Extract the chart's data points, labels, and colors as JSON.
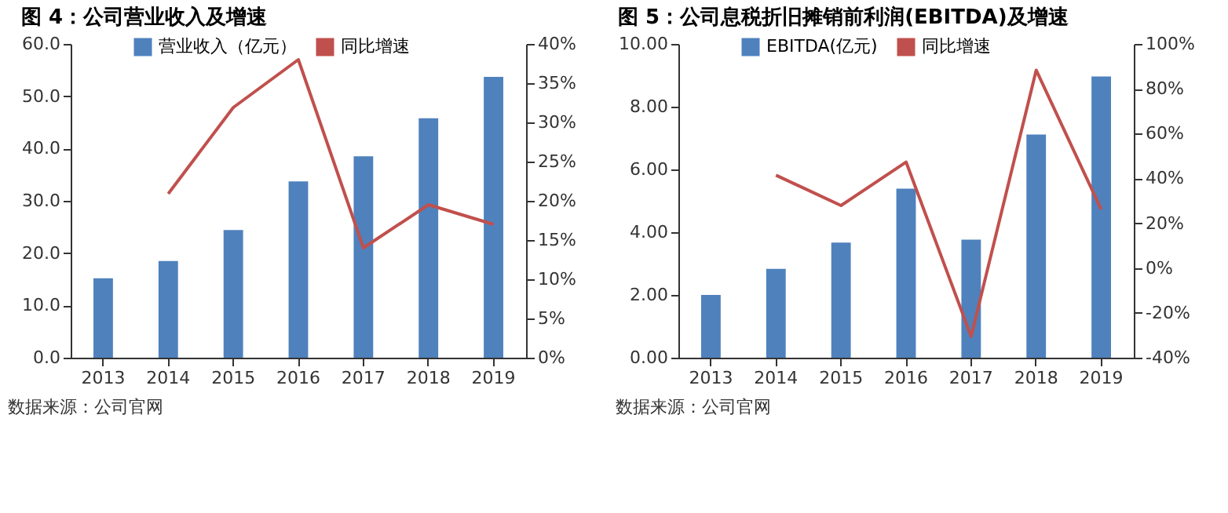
{
  "chart_data": [
    {
      "type": "bar",
      "title": "图 4：公司营业收入及增速",
      "categories": [
        "2013",
        "2014",
        "2015",
        "2016",
        "2017",
        "2018",
        "2019"
      ],
      "legend": "top",
      "grid": false,
      "marker": "none",
      "series": [
        {
          "name": "营业收入（亿元）",
          "color": "#4f81bd",
          "values": [
            15.2,
            18.5,
            24.4,
            33.7,
            38.5,
            45.8,
            53.7
          ]
        },
        {
          "name": "同比增速",
          "type": "line",
          "axis": "y2",
          "color": "#c0504d",
          "values": [
            null,
            20.9,
            31.9,
            38.0,
            14.0,
            19.5,
            17.0
          ]
        }
      ],
      "ylim": [
        0,
        60
      ],
      "yticks": [
        {
          "value": 0,
          "label": "0.0"
        },
        {
          "value": 10,
          "label": "10.0"
        },
        {
          "value": 20,
          "label": "20.0"
        },
        {
          "value": 30,
          "label": "30.0"
        },
        {
          "value": 40,
          "label": "40.0"
        },
        {
          "value": 50,
          "label": "50.0"
        },
        {
          "value": 60,
          "label": "60.0"
        }
      ],
      "y2lim": [
        0,
        40
      ],
      "y2ticks": [
        {
          "value": 0,
          "label": "0%"
        },
        {
          "value": 5,
          "label": "5%"
        },
        {
          "value": 10,
          "label": "10%"
        },
        {
          "value": 15,
          "label": "15%"
        },
        {
          "value": 20,
          "label": "20%"
        },
        {
          "value": 25,
          "label": "25%"
        },
        {
          "value": 30,
          "label": "30%"
        },
        {
          "value": 35,
          "label": "35%"
        },
        {
          "value": 40,
          "label": "40%"
        }
      ],
      "annotations": [
        "数据来源：公司官网"
      ]
    },
    {
      "type": "bar",
      "title": "图 5：公司息税折旧摊销前利润(EBITDA)及增速",
      "categories": [
        "2013",
        "2014",
        "2015",
        "2016",
        "2017",
        "2018",
        "2019"
      ],
      "legend": "top",
      "grid": false,
      "marker": "none",
      "series": [
        {
          "name": "EBITDA(亿元)",
          "color": "#4f81bd",
          "values": [
            2.0,
            2.83,
            3.67,
            5.39,
            3.76,
            7.11,
            8.96
          ]
        },
        {
          "name": "同比增速",
          "type": "line",
          "axis": "y2",
          "color": "#c0504d",
          "values": [
            null,
            41.4,
            27.9,
            47.3,
            -30.5,
            88.3,
            26.1
          ]
        }
      ],
      "ylim": [
        0,
        10
      ],
      "yticks": [
        {
          "value": 0,
          "label": "0.00"
        },
        {
          "value": 2,
          "label": "2.00"
        },
        {
          "value": 4,
          "label": "4.00"
        },
        {
          "value": 6,
          "label": "6.00"
        },
        {
          "value": 8,
          "label": "8.00"
        },
        {
          "value": 10,
          "label": "10.00"
        }
      ],
      "y2lim": [
        -40,
        100
      ],
      "y2ticks": [
        {
          "value": -40,
          "label": "-40%"
        },
        {
          "value": -20,
          "label": "-20%"
        },
        {
          "value": 0,
          "label": "0%"
        },
        {
          "value": 20,
          "label": "20%"
        },
        {
          "value": 40,
          "label": "40%"
        },
        {
          "value": 60,
          "label": "60%"
        },
        {
          "value": 80,
          "label": "80%"
        },
        {
          "value": 100,
          "label": "100%"
        }
      ],
      "annotations": [
        "数据来源：公司官网"
      ]
    }
  ]
}
